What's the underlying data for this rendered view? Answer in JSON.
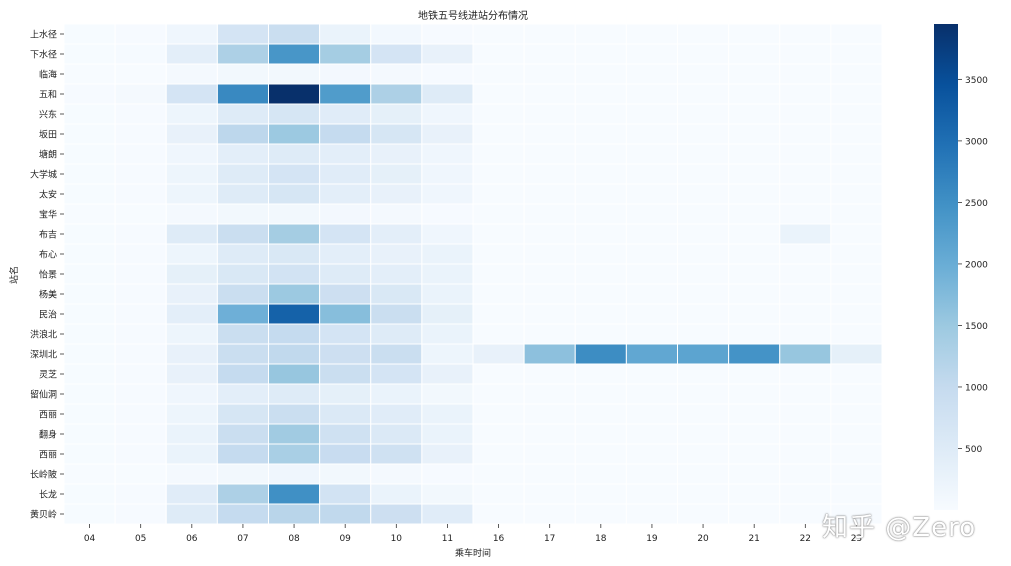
{
  "chart_data": {
    "type": "heatmap",
    "title": "地铁五号线进站分布情况",
    "xlabel": "乘车时间",
    "ylabel": "站名",
    "x": [
      "04",
      "05",
      "06",
      "07",
      "08",
      "09",
      "10",
      "11",
      "16",
      "17",
      "18",
      "19",
      "20",
      "21",
      "22",
      "23"
    ],
    "y": [
      "上水径",
      "下水径",
      "临海",
      "五和",
      "兴东",
      "坂田",
      "塘朗",
      "大学城",
      "太安",
      "宝华",
      "布吉",
      "布心",
      "怡景",
      "杨美",
      "民治",
      "洪浪北",
      "深圳北",
      "灵芝",
      "留仙洞",
      "西丽",
      "翻身",
      "西丽",
      "长岭陂",
      "长龙",
      "黄贝岭"
    ],
    "values": [
      [
        10,
        20,
        150,
        700,
        900,
        250,
        90,
        20,
        0,
        0,
        0,
        0,
        0,
        0,
        0,
        0
      ],
      [
        10,
        30,
        400,
        1300,
        2400,
        1400,
        700,
        300,
        0,
        0,
        0,
        0,
        0,
        0,
        0,
        0
      ],
      [
        0,
        0,
        50,
        100,
        100,
        80,
        50,
        20,
        0,
        0,
        0,
        0,
        0,
        0,
        0,
        0
      ],
      [
        20,
        50,
        700,
        2600,
        3950,
        2300,
        1300,
        500,
        0,
        0,
        0,
        0,
        0,
        0,
        0,
        0
      ],
      [
        10,
        20,
        200,
        500,
        650,
        450,
        350,
        150,
        0,
        0,
        0,
        0,
        0,
        0,
        0,
        0
      ],
      [
        10,
        20,
        300,
        1100,
        1500,
        1000,
        650,
        300,
        0,
        0,
        0,
        0,
        0,
        0,
        0,
        0
      ],
      [
        10,
        20,
        150,
        400,
        500,
        400,
        300,
        150,
        0,
        0,
        0,
        0,
        0,
        0,
        0,
        0
      ],
      [
        10,
        20,
        200,
        500,
        700,
        450,
        350,
        150,
        0,
        0,
        0,
        0,
        0,
        0,
        0,
        0
      ],
      [
        10,
        20,
        200,
        500,
        650,
        400,
        300,
        150,
        0,
        0,
        0,
        0,
        0,
        0,
        0,
        0
      ],
      [
        0,
        0,
        50,
        100,
        100,
        80,
        50,
        20,
        0,
        0,
        0,
        0,
        0,
        0,
        0,
        0
      ],
      [
        10,
        20,
        500,
        900,
        1400,
        700,
        400,
        150,
        0,
        0,
        0,
        0,
        0,
        0,
        250,
        0
      ],
      [
        10,
        20,
        200,
        500,
        600,
        400,
        300,
        250,
        0,
        0,
        0,
        0,
        0,
        0,
        0,
        0
      ],
      [
        10,
        20,
        350,
        600,
        750,
        500,
        400,
        250,
        0,
        0,
        0,
        0,
        0,
        0,
        0,
        0
      ],
      [
        10,
        20,
        300,
        900,
        1500,
        850,
        600,
        250,
        0,
        0,
        0,
        0,
        0,
        0,
        0,
        0
      ],
      [
        10,
        20,
        400,
        1950,
        3200,
        1700,
        900,
        350,
        0,
        0,
        0,
        0,
        0,
        0,
        0,
        0
      ],
      [
        10,
        20,
        200,
        900,
        1000,
        700,
        500,
        250,
        0,
        0,
        0,
        0,
        0,
        0,
        0,
        0
      ],
      [
        10,
        20,
        300,
        900,
        1050,
        850,
        900,
        200,
        300,
        1650,
        2550,
        2100,
        2150,
        2450,
        1550,
        350
      ],
      [
        10,
        20,
        300,
        1000,
        1550,
        900,
        700,
        300,
        0,
        0,
        0,
        0,
        0,
        0,
        0,
        0
      ],
      [
        10,
        20,
        150,
        400,
        500,
        350,
        250,
        100,
        0,
        0,
        0,
        0,
        0,
        0,
        0,
        0
      ],
      [
        10,
        20,
        200,
        650,
        900,
        550,
        450,
        250,
        0,
        0,
        0,
        0,
        0,
        0,
        0,
        0
      ],
      [
        10,
        20,
        250,
        900,
        1450,
        800,
        550,
        250,
        0,
        0,
        0,
        0,
        0,
        0,
        0,
        0
      ],
      [
        10,
        20,
        250,
        1000,
        1350,
        950,
        800,
        300,
        0,
        0,
        0,
        0,
        0,
        0,
        0,
        0
      ],
      [
        0,
        0,
        50,
        100,
        150,
        100,
        50,
        20,
        0,
        0,
        0,
        0,
        0,
        0,
        0,
        0
      ],
      [
        10,
        20,
        450,
        1300,
        2500,
        750,
        250,
        100,
        0,
        0,
        0,
        0,
        0,
        0,
        0,
        0
      ],
      [
        10,
        20,
        500,
        1000,
        1150,
        1050,
        850,
        450,
        0,
        0,
        0,
        0,
        0,
        0,
        0,
        0
      ]
    ],
    "colorbar": {
      "min": 0,
      "max": 3950,
      "ticks": [
        500,
        1000,
        1500,
        2000,
        2500,
        3000,
        3500
      ],
      "colormap": "Blues"
    }
  },
  "watermark": "知乎 @Zero"
}
